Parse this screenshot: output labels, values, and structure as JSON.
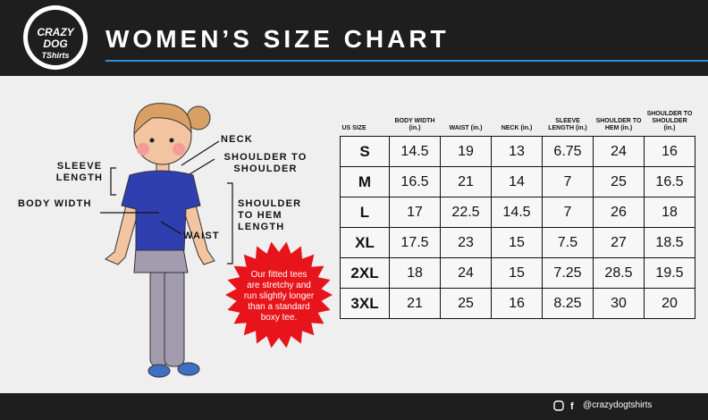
{
  "header": {
    "logo": "CRAZY DOG",
    "logo_sub": "TShirts",
    "title": "WOMEN’S SIZE CHART"
  },
  "diagram": {
    "neck": "NECK",
    "shoulder_to_shoulder": "SHOULDER TO SHOULDER",
    "sleeve_length": "SLEEVE LENGTH",
    "body_width": "BODY WIDTH",
    "waist": "WAIST",
    "shoulder_to_hem": "SHOULDER TO HEM LENGTH"
  },
  "callout": "Our fitted tees are stretchy and run slightly longer than a standard boxy tee.",
  "table": {
    "headers": [
      "US SIZE",
      "BODY WIDTH (in.)",
      "WAIST (in.)",
      "NECK (in.)",
      "SLEEVE LENGTH (in.)",
      "SHOULDER TO HEM (in.)",
      "SHOULDER TO SHOULDER (in.)"
    ],
    "rows": [
      [
        "S",
        14.5,
        19,
        13,
        6.75,
        24,
        16
      ],
      [
        "M",
        16.5,
        21,
        14,
        7,
        25,
        16.5
      ],
      [
        "L",
        17,
        22.5,
        14.5,
        7,
        26,
        18
      ],
      [
        "XL",
        17.5,
        23,
        15,
        7.5,
        27,
        18.5
      ],
      [
        "2XL",
        18,
        24,
        15,
        7.25,
        28.5,
        19.5
      ],
      [
        "3XL",
        21,
        25,
        16,
        8.25,
        30,
        20
      ]
    ]
  },
  "footer": {
    "handle": "@crazydogtshirts"
  }
}
